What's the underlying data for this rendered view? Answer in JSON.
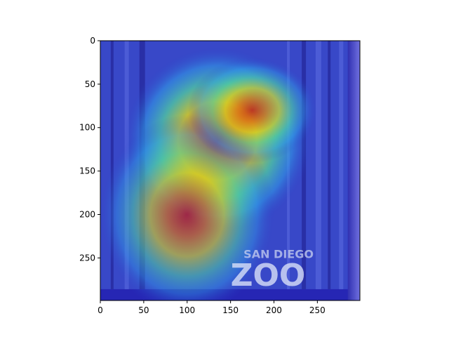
{
  "chart_data": {
    "type": "heatmap",
    "title": "",
    "xlabel": "",
    "ylabel": "",
    "xlim": [
      0,
      299
    ],
    "ylim": [
      299,
      0
    ],
    "x_ticks": [
      0,
      50,
      100,
      150,
      200,
      250
    ],
    "y_ticks": [
      0,
      50,
      100,
      150,
      200,
      250
    ],
    "x_tick_labels": [
      "0",
      "50",
      "100",
      "150",
      "200",
      "250"
    ],
    "y_tick_labels": [
      "0",
      "50",
      "100",
      "150",
      "200",
      "250"
    ],
    "grid": false,
    "colormap": "jet",
    "image_content": "attention-heatmap-over-photo",
    "heat_regions": [
      {
        "cx": 135,
        "cy": 115,
        "rx": 80,
        "ry": 80,
        "level": 1.0
      },
      {
        "cx": 100,
        "cy": 200,
        "rx": 75,
        "ry": 85,
        "level": 0.75
      },
      {
        "cx": 175,
        "cy": 80,
        "rx": 55,
        "ry": 45,
        "level": 0.8
      }
    ],
    "overlay_text": {
      "line1": "SAN DIEGO",
      "line2": "ZOO"
    }
  },
  "colors": {
    "background": "#ffffff",
    "axis": "#000000",
    "cold": "#1a1aa8",
    "hot": "#d81a10"
  }
}
